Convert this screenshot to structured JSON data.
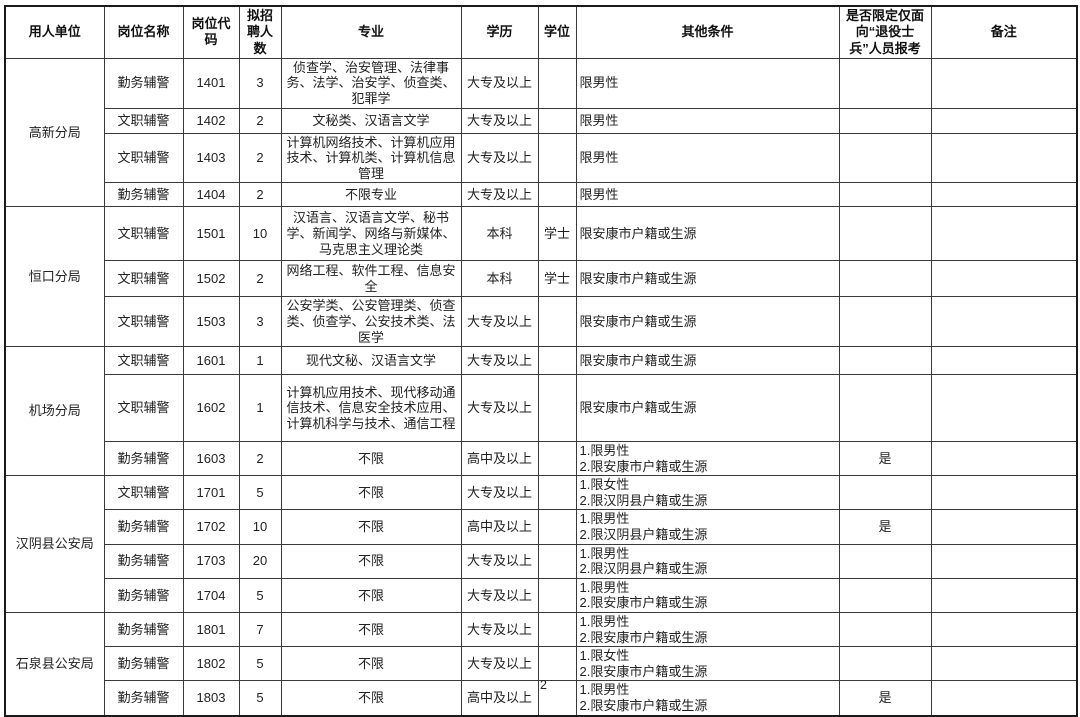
{
  "page_number": "2",
  "table": {
    "headers": [
      "用人单位",
      "岗位名称",
      "岗位代码",
      "拟招聘人数",
      "专业",
      "学历",
      "学位",
      "其他条件",
      "是否限定仅面向“退役士兵”人员报考",
      "备注"
    ],
    "groups": [
      {
        "unit": "高新分局",
        "rows": [
          {
            "position": "勤务辅警",
            "code": "1401",
            "count": "3",
            "major": "侦查学、治安管理、法律事务、法学、治安学、侦查类、犯罪学",
            "education": "大专及以上",
            "degree": "",
            "other": "限男性",
            "veteran": "",
            "remark": ""
          },
          {
            "position": "文职辅警",
            "code": "1402",
            "count": "2",
            "major": "文秘类、汉语言文学",
            "education": "大专及以上",
            "degree": "",
            "other": "限男性",
            "veteran": "",
            "remark": ""
          },
          {
            "position": "文职辅警",
            "code": "1403",
            "count": "2",
            "major": "计算机网络技术、计算机应用技术、计算机类、计算机信息管理",
            "education": "大专及以上",
            "degree": "",
            "other": "限男性",
            "veteran": "",
            "remark": ""
          },
          {
            "position": "勤务辅警",
            "code": "1404",
            "count": "2",
            "major": "不限专业",
            "education": "大专及以上",
            "degree": "",
            "other": "限男性",
            "veteran": "",
            "remark": ""
          }
        ]
      },
      {
        "unit": "恒口分局",
        "rows": [
          {
            "position": "文职辅警",
            "code": "1501",
            "count": "10",
            "major": "汉语言、汉语言文学、秘书学、新闻学、网络与新媒体、马克思主义理论类",
            "education": "本科",
            "degree": "学士",
            "other": "限安康市户籍或生源",
            "veteran": "",
            "remark": ""
          },
          {
            "position": "文职辅警",
            "code": "1502",
            "count": "2",
            "major": "网络工程、软件工程、信息安全",
            "education": "本科",
            "degree": "学士",
            "other": "限安康市户籍或生源",
            "veteran": "",
            "remark": ""
          },
          {
            "position": "文职辅警",
            "code": "1503",
            "count": "3",
            "major": "公安学类、公安管理类、侦查类、侦查学、公安技术类、法医学",
            "education": "大专及以上",
            "degree": "",
            "other": "限安康市户籍或生源",
            "veteran": "",
            "remark": ""
          }
        ]
      },
      {
        "unit": "机场分局",
        "rows": [
          {
            "position": "文职辅警",
            "code": "1601",
            "count": "1",
            "major": "现代文秘、汉语言文学",
            "education": "大专及以上",
            "degree": "",
            "other": "限安康市户籍或生源",
            "veteran": "",
            "remark": ""
          },
          {
            "position": "文职辅警",
            "code": "1602",
            "count": "1",
            "major": "计算机应用技术、现代移动通信技术、信息安全技术应用、计算机科学与技术、通信工程",
            "education": "大专及以上",
            "degree": "",
            "other": "限安康市户籍或生源",
            "veteran": "",
            "remark": ""
          },
          {
            "position": "勤务辅警",
            "code": "1603",
            "count": "2",
            "major": "不限",
            "education": "高中及以上",
            "degree": "",
            "other": "1.限男性\n2.限安康市户籍或生源",
            "veteran": "是",
            "remark": ""
          }
        ]
      },
      {
        "unit": "汉阴县公安局",
        "rows": [
          {
            "position": "文职辅警",
            "code": "1701",
            "count": "5",
            "major": "不限",
            "education": "大专及以上",
            "degree": "",
            "other": "1.限女性\n2.限汉阴县户籍或生源",
            "veteran": "",
            "remark": ""
          },
          {
            "position": "勤务辅警",
            "code": "1702",
            "count": "10",
            "major": "不限",
            "education": "高中及以上",
            "degree": "",
            "other": "1.限男性\n2.限汉阴县户籍或生源",
            "veteran": "是",
            "remark": ""
          },
          {
            "position": "勤务辅警",
            "code": "1703",
            "count": "20",
            "major": "不限",
            "education": "大专及以上",
            "degree": "",
            "other": "1.限男性\n2.限汉阴县户籍或生源",
            "veteran": "",
            "remark": ""
          },
          {
            "position": "勤务辅警",
            "code": "1704",
            "count": "5",
            "major": "不限",
            "education": "大专及以上",
            "degree": "",
            "other": "1.限男性\n2.限安康市户籍或生源",
            "veteran": "",
            "remark": ""
          }
        ]
      },
      {
        "unit": "石泉县公安局",
        "rows": [
          {
            "position": "勤务辅警",
            "code": "1801",
            "count": "7",
            "major": "不限",
            "education": "大专及以上",
            "degree": "",
            "other": "1.限男性\n2.限安康市户籍或生源",
            "veteran": "",
            "remark": ""
          },
          {
            "position": "勤务辅警",
            "code": "1802",
            "count": "5",
            "major": "不限",
            "education": "大专及以上",
            "degree": "",
            "other": "1.限女性\n2.限安康市户籍或生源",
            "veteran": "",
            "remark": ""
          },
          {
            "position": "勤务辅警",
            "code": "1803",
            "count": "5",
            "major": "不限",
            "education": "高中及以上",
            "degree": "",
            "other": "1.限男性\n2.限安康市户籍或生源",
            "veteran": "是",
            "remark": ""
          }
        ]
      }
    ]
  }
}
